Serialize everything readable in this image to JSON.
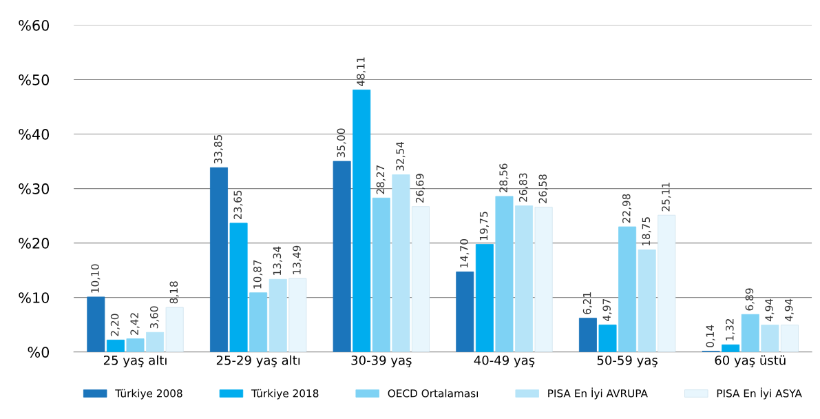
{
  "chart_data": {
    "type": "bar",
    "categories": [
      "25 yaş altı",
      "25-29 yaş altı",
      "30-39 yaş",
      "40-49 yaş",
      "50-59 yaş",
      "60 yaş üstü"
    ],
    "series": [
      {
        "name": "Türkiye 2008",
        "color": "#1b75bb",
        "values": [
          10.1,
          33.85,
          35.0,
          14.7,
          6.21,
          0.14
        ],
        "value_labels": [
          "10,10",
          "33,85",
          "35,00",
          "14,70",
          "6,21",
          "0,14"
        ]
      },
      {
        "name": "Türkiye 2018",
        "color": "#00adee",
        "values": [
          2.2,
          23.65,
          48.11,
          19.75,
          4.97,
          1.32
        ],
        "value_labels": [
          "2,20",
          "23,65",
          "48,11",
          "19,75",
          "4,97",
          "1,32"
        ]
      },
      {
        "name": "OECD Ortalaması",
        "color": "#7ed2f4",
        "values": [
          2.42,
          10.87,
          28.27,
          28.56,
          22.98,
          6.89
        ],
        "value_labels": [
          "2,42",
          "10,87",
          "28,27",
          "28,56",
          "22,98",
          "6,89"
        ]
      },
      {
        "name": "PISA En İyi AVRUPA",
        "color": "#b6e4f8",
        "values": [
          3.6,
          13.34,
          32.54,
          26.83,
          18.75,
          4.94
        ],
        "value_labels": [
          "3,60",
          "13,34",
          "32,54",
          "26,83",
          "18,75",
          "4,94"
        ]
      },
      {
        "name": "PISA En İyi ASYA",
        "color": "#e8f6fd",
        "values": [
          8.18,
          13.49,
          26.69,
          26.58,
          25.11,
          4.94
        ],
        "value_labels": [
          "8,18",
          "13,49",
          "26,69",
          "26,58",
          "25,11",
          "4,94"
        ]
      }
    ],
    "ylim": [
      0,
      60
    ],
    "yticks": [
      {
        "value": 0,
        "label": "%0"
      },
      {
        "value": 10,
        "label": "%10"
      },
      {
        "value": 20,
        "label": "%20"
      },
      {
        "value": 30,
        "label": "%30"
      },
      {
        "value": 40,
        "label": "%40"
      },
      {
        "value": 50,
        "label": "%50"
      },
      {
        "value": 60,
        "label": "%60"
      }
    ],
    "grid": "y",
    "legend": "bottom"
  }
}
